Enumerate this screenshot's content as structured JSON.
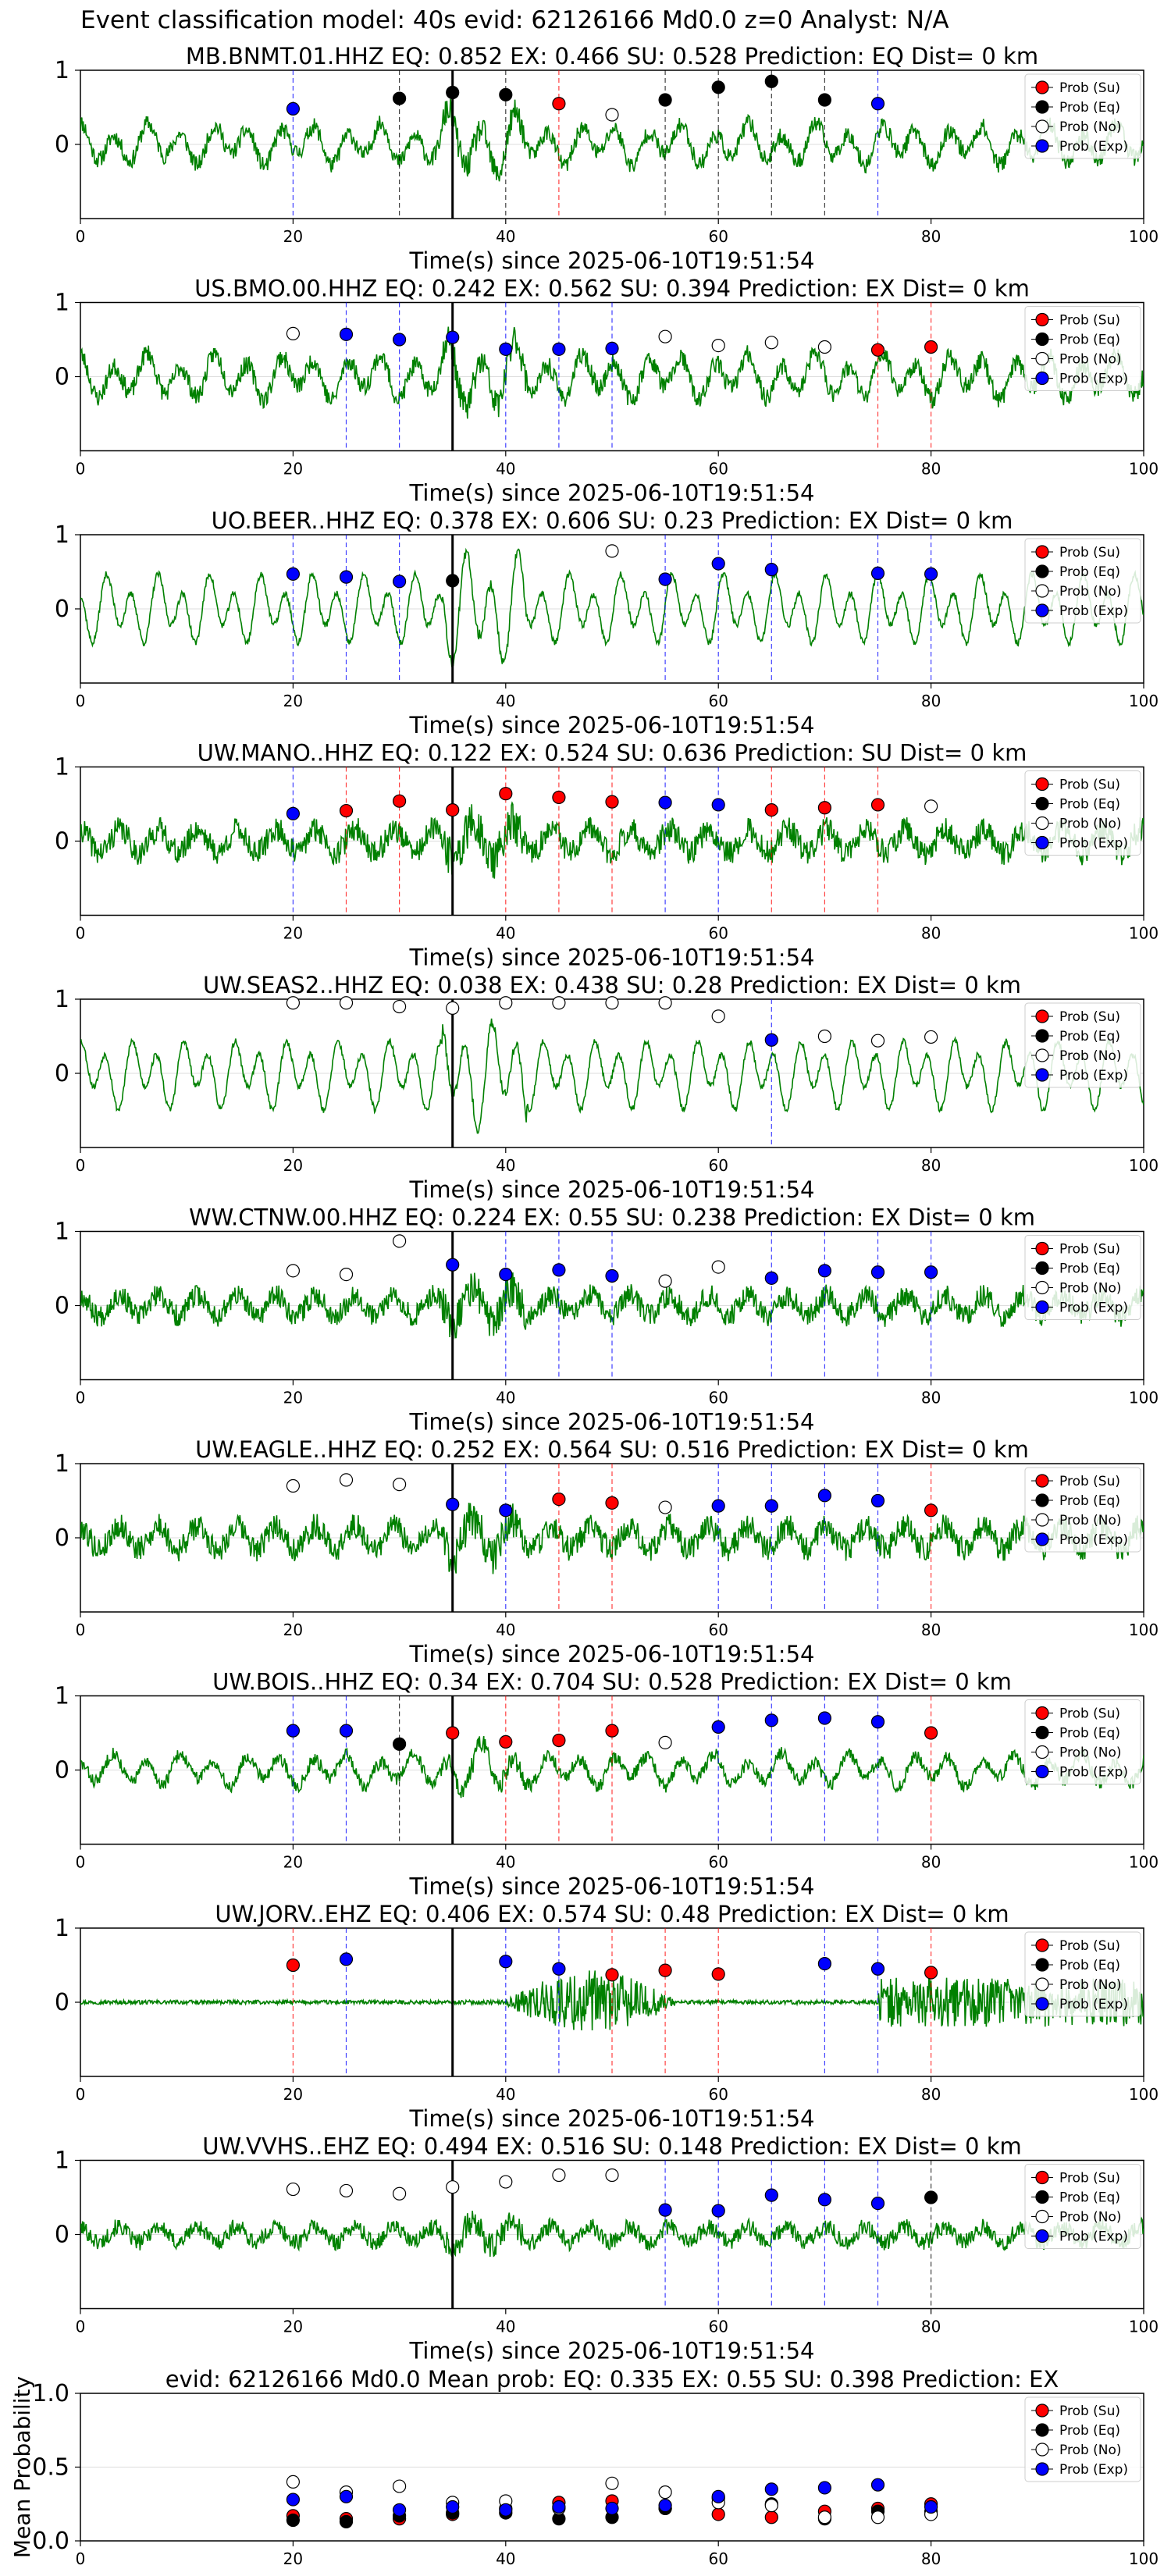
{
  "figure_title": "Event classification model: 40s evid: 62126166 Md0.0 z=0 Analyst: N/A",
  "colors": {
    "waveform": "#008000",
    "su": "#ff0000",
    "eq": "#000000",
    "no": "#ffffff",
    "exp": "#0000ff",
    "grid": "#dddddd"
  },
  "legend_labels": [
    "Prob (Su)",
    "Prob (Eq)",
    "Prob (No)",
    "Prob (Exp)"
  ],
  "xlabel": "Time(s) since 2025-06-10T19:51:54",
  "chart_data": [
    {
      "type": "line",
      "title": "MB.BNMT.01.HHZ   EQ: 0.852  EX: 0.466  SU: 0.528   Prediction: EQ    Dist= 0 km",
      "xlim": [
        0,
        100
      ],
      "ylim": [
        -1,
        1
      ],
      "xticks": [
        0,
        20,
        40,
        60,
        80,
        100
      ],
      "yticks": [
        0,
        1
      ],
      "pick_time": 35,
      "wave": {
        "style": "mixed",
        "amp": 0.45,
        "seed": 11
      },
      "probs": [
        {
          "x": 20,
          "cls": "exp",
          "y": 0.48
        },
        {
          "x": 30,
          "cls": "eq",
          "y": 0.62
        },
        {
          "x": 35,
          "cls": "eq",
          "y": 0.7
        },
        {
          "x": 40,
          "cls": "eq",
          "y": 0.67
        },
        {
          "x": 45,
          "cls": "su",
          "y": 0.55
        },
        {
          "x": 50,
          "cls": "no",
          "y": 0.4
        },
        {
          "x": 55,
          "cls": "eq",
          "y": 0.6
        },
        {
          "x": 60,
          "cls": "eq",
          "y": 0.77
        },
        {
          "x": 65,
          "cls": "eq",
          "y": 0.85
        },
        {
          "x": 70,
          "cls": "eq",
          "y": 0.6
        },
        {
          "x": 75,
          "cls": "exp",
          "y": 0.55
        }
      ]
    },
    {
      "type": "line",
      "title": "US.BMO.00.HHZ   EQ: 0.242  EX: 0.562  SU: 0.394   Prediction: EX    Dist= 0 km",
      "xlim": [
        0,
        100
      ],
      "ylim": [
        -1,
        1
      ],
      "xticks": [
        0,
        20,
        40,
        60,
        80,
        100
      ],
      "yticks": [
        0,
        1
      ],
      "pick_time": 35,
      "wave": {
        "style": "mixed",
        "amp": 0.5,
        "seed": 23
      },
      "probs": [
        {
          "x": 20,
          "cls": "no",
          "y": 0.58
        },
        {
          "x": 25,
          "cls": "exp",
          "y": 0.57
        },
        {
          "x": 30,
          "cls": "exp",
          "y": 0.5
        },
        {
          "x": 35,
          "cls": "exp",
          "y": 0.53
        },
        {
          "x": 40,
          "cls": "exp",
          "y": 0.37
        },
        {
          "x": 45,
          "cls": "exp",
          "y": 0.37
        },
        {
          "x": 50,
          "cls": "exp",
          "y": 0.38
        },
        {
          "x": 55,
          "cls": "no",
          "y": 0.54
        },
        {
          "x": 60,
          "cls": "no",
          "y": 0.42
        },
        {
          "x": 65,
          "cls": "no",
          "y": 0.46
        },
        {
          "x": 70,
          "cls": "no",
          "y": 0.4
        },
        {
          "x": 75,
          "cls": "su",
          "y": 0.36
        },
        {
          "x": 80,
          "cls": "su",
          "y": 0.4
        }
      ]
    },
    {
      "type": "line",
      "title": "UO.BEER..HHZ   EQ: 0.378  EX: 0.606  SU: 0.23   Prediction: EX    Dist= 0 km",
      "xlim": [
        0,
        100
      ],
      "ylim": [
        -1,
        1
      ],
      "xticks": [
        0,
        20,
        40,
        60,
        80,
        100
      ],
      "yticks": [
        0,
        1
      ],
      "pick_time": 35,
      "wave": {
        "style": "smooth",
        "amp": 0.6,
        "seed": 37
      },
      "probs": [
        {
          "x": 20,
          "cls": "exp",
          "y": 0.47
        },
        {
          "x": 25,
          "cls": "exp",
          "y": 0.43
        },
        {
          "x": 30,
          "cls": "exp",
          "y": 0.37
        },
        {
          "x": 35,
          "cls": "eq",
          "y": 0.38
        },
        {
          "x": 50,
          "cls": "no",
          "y": 0.78
        },
        {
          "x": 55,
          "cls": "exp",
          "y": 0.4
        },
        {
          "x": 60,
          "cls": "exp",
          "y": 0.61
        },
        {
          "x": 65,
          "cls": "exp",
          "y": 0.53
        },
        {
          "x": 75,
          "cls": "exp",
          "y": 0.48
        },
        {
          "x": 80,
          "cls": "exp",
          "y": 0.47
        }
      ]
    },
    {
      "type": "line",
      "title": "UW.MANO..HHZ   EQ: 0.122  EX: 0.524  SU: 0.636   Prediction: SU    Dist= 0 km",
      "xlim": [
        0,
        100
      ],
      "ylim": [
        -1,
        1
      ],
      "xticks": [
        0,
        20,
        40,
        60,
        80,
        100
      ],
      "yticks": [
        0,
        1
      ],
      "pick_time": 35,
      "wave": {
        "style": "noisy",
        "amp": 0.45,
        "seed": 41
      },
      "probs": [
        {
          "x": 20,
          "cls": "exp",
          "y": 0.37
        },
        {
          "x": 25,
          "cls": "su",
          "y": 0.41
        },
        {
          "x": 30,
          "cls": "su",
          "y": 0.54
        },
        {
          "x": 35,
          "cls": "su",
          "y": 0.42
        },
        {
          "x": 40,
          "cls": "su",
          "y": 0.64
        },
        {
          "x": 45,
          "cls": "su",
          "y": 0.59
        },
        {
          "x": 50,
          "cls": "su",
          "y": 0.53
        },
        {
          "x": 55,
          "cls": "exp",
          "y": 0.52
        },
        {
          "x": 60,
          "cls": "exp",
          "y": 0.49
        },
        {
          "x": 65,
          "cls": "su",
          "y": 0.42
        },
        {
          "x": 70,
          "cls": "su",
          "y": 0.45
        },
        {
          "x": 75,
          "cls": "su",
          "y": 0.49
        },
        {
          "x": 80,
          "cls": "no",
          "y": 0.47
        }
      ]
    },
    {
      "type": "line",
      "title": "UW.SEAS2..HHZ   EQ: 0.038  EX: 0.438  SU: 0.28   Prediction: EX    Dist= 0 km",
      "xlim": [
        0,
        100
      ],
      "ylim": [
        -1,
        1
      ],
      "xticks": [
        0,
        20,
        40,
        60,
        80,
        100
      ],
      "yticks": [
        0,
        1
      ],
      "pick_time": 35,
      "wave": {
        "style": "smooth",
        "amp": 0.6,
        "seed": 53
      },
      "probs": [
        {
          "x": 20,
          "cls": "no",
          "y": 0.95
        },
        {
          "x": 25,
          "cls": "no",
          "y": 0.95
        },
        {
          "x": 30,
          "cls": "no",
          "y": 0.9
        },
        {
          "x": 35,
          "cls": "no",
          "y": 0.88
        },
        {
          "x": 40,
          "cls": "no",
          "y": 0.95
        },
        {
          "x": 45,
          "cls": "no",
          "y": 0.95
        },
        {
          "x": 50,
          "cls": "no",
          "y": 0.95
        },
        {
          "x": 55,
          "cls": "no",
          "y": 0.95
        },
        {
          "x": 60,
          "cls": "no",
          "y": 0.77
        },
        {
          "x": 65,
          "cls": "exp",
          "y": 0.45
        },
        {
          "x": 70,
          "cls": "no",
          "y": 0.5
        },
        {
          "x": 75,
          "cls": "no",
          "y": 0.44
        },
        {
          "x": 80,
          "cls": "no",
          "y": 0.49
        }
      ]
    },
    {
      "type": "line",
      "title": "WW.CTNW.00.HHZ   EQ: 0.224  EX: 0.55  SU: 0.238   Prediction: EX    Dist= 0 km",
      "xlim": [
        0,
        100
      ],
      "ylim": [
        -1,
        1
      ],
      "xticks": [
        0,
        20,
        40,
        60,
        80,
        100
      ],
      "yticks": [
        0,
        1
      ],
      "pick_time": 35,
      "wave": {
        "style": "noisy",
        "amp": 0.4,
        "seed": 67
      },
      "probs": [
        {
          "x": 20,
          "cls": "no",
          "y": 0.47
        },
        {
          "x": 25,
          "cls": "no",
          "y": 0.42
        },
        {
          "x": 30,
          "cls": "no",
          "y": 0.87
        },
        {
          "x": 35,
          "cls": "exp",
          "y": 0.55
        },
        {
          "x": 40,
          "cls": "exp",
          "y": 0.42
        },
        {
          "x": 45,
          "cls": "exp",
          "y": 0.48
        },
        {
          "x": 50,
          "cls": "exp",
          "y": 0.4
        },
        {
          "x": 55,
          "cls": "no",
          "y": 0.33
        },
        {
          "x": 60,
          "cls": "no",
          "y": 0.52
        },
        {
          "x": 65,
          "cls": "exp",
          "y": 0.37
        },
        {
          "x": 70,
          "cls": "exp",
          "y": 0.47
        },
        {
          "x": 75,
          "cls": "exp",
          "y": 0.45
        },
        {
          "x": 80,
          "cls": "exp",
          "y": 0.45
        }
      ]
    },
    {
      "type": "line",
      "title": "UW.EAGLE..HHZ   EQ: 0.252  EX: 0.564  SU: 0.516   Prediction: EX    Dist= 0 km",
      "xlim": [
        0,
        100
      ],
      "ylim": [
        -1,
        1
      ],
      "xticks": [
        0,
        20,
        40,
        60,
        80,
        100
      ],
      "yticks": [
        0,
        1
      ],
      "pick_time": 35,
      "wave": {
        "style": "noisy",
        "amp": 0.45,
        "seed": 79
      },
      "probs": [
        {
          "x": 20,
          "cls": "no",
          "y": 0.7
        },
        {
          "x": 25,
          "cls": "no",
          "y": 0.78
        },
        {
          "x": 30,
          "cls": "no",
          "y": 0.72
        },
        {
          "x": 35,
          "cls": "exp",
          "y": 0.45
        },
        {
          "x": 40,
          "cls": "exp",
          "y": 0.37
        },
        {
          "x": 45,
          "cls": "su",
          "y": 0.52
        },
        {
          "x": 50,
          "cls": "su",
          "y": 0.47
        },
        {
          "x": 55,
          "cls": "no",
          "y": 0.41
        },
        {
          "x": 60,
          "cls": "exp",
          "y": 0.43
        },
        {
          "x": 65,
          "cls": "exp",
          "y": 0.43
        },
        {
          "x": 70,
          "cls": "exp",
          "y": 0.57
        },
        {
          "x": 75,
          "cls": "exp",
          "y": 0.5
        },
        {
          "x": 80,
          "cls": "su",
          "y": 0.37
        }
      ]
    },
    {
      "type": "line",
      "title": "UW.BOIS..HHZ   EQ: 0.34  EX: 0.704  SU: 0.528   Prediction: EX    Dist= 0 km",
      "xlim": [
        0,
        100
      ],
      "ylim": [
        -1,
        1
      ],
      "xticks": [
        0,
        20,
        40,
        60,
        80,
        100
      ],
      "yticks": [
        0,
        1
      ],
      "pick_time": 35,
      "wave": {
        "style": "mixed",
        "amp": 0.35,
        "seed": 83
      },
      "probs": [
        {
          "x": 20,
          "cls": "exp",
          "y": 0.53
        },
        {
          "x": 25,
          "cls": "exp",
          "y": 0.53
        },
        {
          "x": 30,
          "cls": "eq",
          "y": 0.35
        },
        {
          "x": 35,
          "cls": "su",
          "y": 0.5
        },
        {
          "x": 40,
          "cls": "su",
          "y": 0.38
        },
        {
          "x": 45,
          "cls": "su",
          "y": 0.4
        },
        {
          "x": 50,
          "cls": "su",
          "y": 0.53
        },
        {
          "x": 55,
          "cls": "no",
          "y": 0.37
        },
        {
          "x": 60,
          "cls": "exp",
          "y": 0.58
        },
        {
          "x": 65,
          "cls": "exp",
          "y": 0.67
        },
        {
          "x": 70,
          "cls": "exp",
          "y": 0.7
        },
        {
          "x": 75,
          "cls": "exp",
          "y": 0.65
        },
        {
          "x": 80,
          "cls": "su",
          "y": 0.5
        }
      ]
    },
    {
      "type": "line",
      "title": "UW.JORV..EHZ   EQ: 0.406  EX: 0.574  SU: 0.48   Prediction: EX    Dist= 0 km",
      "xlim": [
        0,
        100
      ],
      "ylim": [
        -1,
        1
      ],
      "xticks": [
        0,
        20,
        40,
        60,
        80,
        100
      ],
      "yticks": [
        0,
        1
      ],
      "pick_time": 35,
      "wave": {
        "style": "bursts",
        "amp": 0.65,
        "seed": 97
      },
      "probs": [
        {
          "x": 20,
          "cls": "su",
          "y": 0.5
        },
        {
          "x": 25,
          "cls": "exp",
          "y": 0.58
        },
        {
          "x": 40,
          "cls": "exp",
          "y": 0.55
        },
        {
          "x": 45,
          "cls": "exp",
          "y": 0.45
        },
        {
          "x": 50,
          "cls": "su",
          "y": 0.37
        },
        {
          "x": 55,
          "cls": "su",
          "y": 0.43
        },
        {
          "x": 60,
          "cls": "su",
          "y": 0.38
        },
        {
          "x": 70,
          "cls": "exp",
          "y": 0.52
        },
        {
          "x": 75,
          "cls": "exp",
          "y": 0.45
        },
        {
          "x": 80,
          "cls": "su",
          "y": 0.4
        }
      ]
    },
    {
      "type": "line",
      "title": "UW.VVHS..EHZ   EQ: 0.494  EX: 0.516  SU: 0.148   Prediction: EX    Dist= 0 km",
      "xlim": [
        0,
        100
      ],
      "ylim": [
        -1,
        1
      ],
      "xticks": [
        0,
        20,
        40,
        60,
        80,
        100
      ],
      "yticks": [
        0,
        1
      ],
      "pick_time": 35,
      "wave": {
        "style": "noisy",
        "amp": 0.3,
        "seed": 101
      },
      "probs": [
        {
          "x": 20,
          "cls": "no",
          "y": 0.61
        },
        {
          "x": 25,
          "cls": "no",
          "y": 0.59
        },
        {
          "x": 30,
          "cls": "no",
          "y": 0.55
        },
        {
          "x": 35,
          "cls": "no",
          "y": 0.64
        },
        {
          "x": 40,
          "cls": "no",
          "y": 0.71
        },
        {
          "x": 45,
          "cls": "no",
          "y": 0.8
        },
        {
          "x": 50,
          "cls": "no",
          "y": 0.8
        },
        {
          "x": 55,
          "cls": "exp",
          "y": 0.33
        },
        {
          "x": 60,
          "cls": "exp",
          "y": 0.32
        },
        {
          "x": 65,
          "cls": "exp",
          "y": 0.53
        },
        {
          "x": 70,
          "cls": "exp",
          "y": 0.47
        },
        {
          "x": 75,
          "cls": "exp",
          "y": 0.42
        },
        {
          "x": 80,
          "cls": "eq",
          "y": 0.5
        }
      ]
    },
    {
      "type": "scatter",
      "title": "evid: 62126166  Md0.0   Mean prob:   EQ: 0.335  EX: 0.55  SU: 0.398   Prediction: EX",
      "ylabel": "Mean Probability",
      "xlim": [
        0,
        100
      ],
      "ylim": [
        0,
        1
      ],
      "xticks": [
        0,
        20,
        40,
        60,
        80,
        100
      ],
      "yticks": [
        0.0,
        0.5,
        1.0
      ],
      "ytick_labels": [
        "0.0",
        "0.5",
        "1.0"
      ],
      "series": [
        {
          "name": "Prob (Su)",
          "cls": "su",
          "x": [
            20,
            25,
            30,
            35,
            40,
            45,
            50,
            55,
            60,
            65,
            70,
            75,
            80
          ],
          "y": [
            0.17,
            0.15,
            0.15,
            0.18,
            0.22,
            0.26,
            0.27,
            0.22,
            0.18,
            0.16,
            0.2,
            0.22,
            0.25
          ]
        },
        {
          "name": "Prob (Eq)",
          "cls": "eq",
          "x": [
            20,
            25,
            30,
            35,
            40,
            45,
            50,
            55,
            60,
            65,
            70,
            75,
            80
          ],
          "y": [
            0.14,
            0.13,
            0.17,
            0.19,
            0.19,
            0.15,
            0.16,
            0.22,
            0.29,
            0.25,
            0.15,
            0.2,
            0.2
          ]
        },
        {
          "name": "Prob (No)",
          "cls": "no",
          "x": [
            20,
            25,
            30,
            35,
            40,
            45,
            50,
            55,
            60,
            65,
            70,
            75,
            80
          ],
          "y": [
            0.4,
            0.33,
            0.37,
            0.26,
            0.27,
            0.22,
            0.39,
            0.33,
            0.26,
            0.24,
            0.16,
            0.16,
            0.18
          ]
        },
        {
          "name": "Prob (Exp)",
          "cls": "exp",
          "x": [
            20,
            25,
            30,
            35,
            40,
            45,
            50,
            55,
            60,
            65,
            70,
            75,
            80
          ],
          "y": [
            0.28,
            0.3,
            0.21,
            0.23,
            0.21,
            0.23,
            0.22,
            0.24,
            0.3,
            0.35,
            0.36,
            0.38,
            0.23
          ]
        }
      ]
    }
  ]
}
